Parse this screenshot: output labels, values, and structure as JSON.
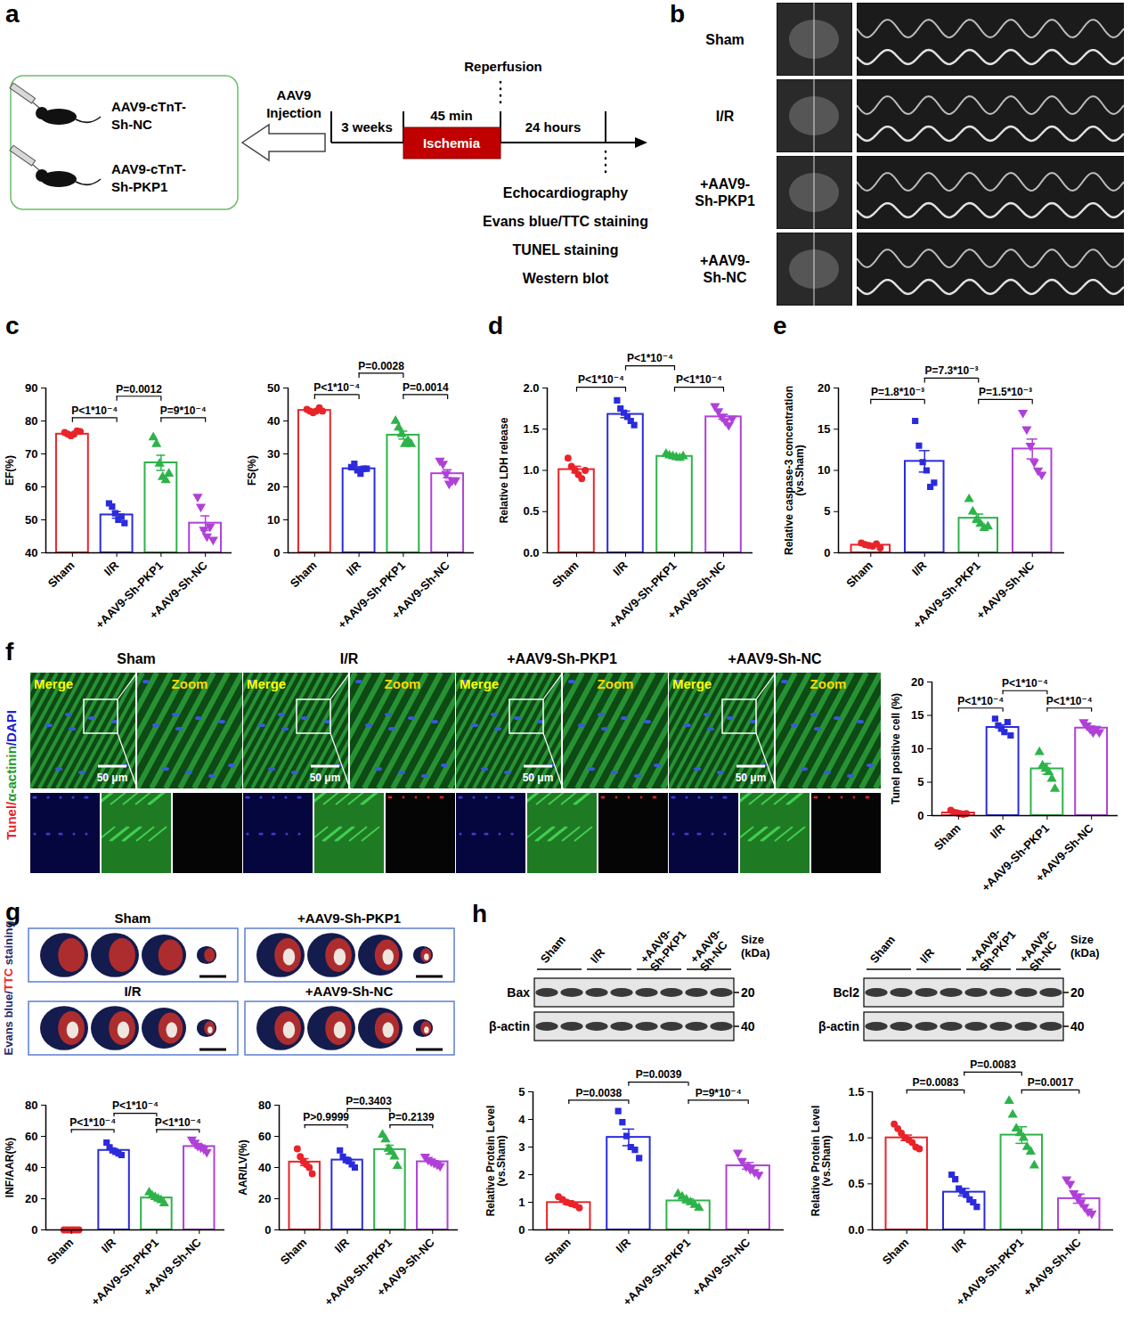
{
  "figure": {
    "letters": [
      "a",
      "b",
      "c",
      "d",
      "e",
      "f",
      "g",
      "h"
    ],
    "a": {
      "groups": [
        [
          "AAV9-cTnT-",
          "Sh-NC"
        ],
        [
          "AAV9-cTnT-",
          "Sh-PKP1"
        ]
      ],
      "injection": [
        "AAV9",
        "Injection"
      ],
      "reperfusion": "Reperfusion",
      "interval": "3 weeks",
      "ischemia_time": "45 min",
      "ischemia": "Ischemia",
      "reperfusion_time": "24 hours",
      "assays": [
        "Echocardiography",
        "Evans blue/TTC staining",
        "TUNEL staining",
        "Western blot"
      ]
    },
    "b": {
      "rows": [
        [
          "Sham"
        ],
        [
          "I/R"
        ],
        [
          "+AAV9-",
          "Sh-PKP1"
        ],
        [
          "+AAV9-",
          "Sh-NC"
        ]
      ]
    },
    "f": {
      "columns": [
        "Sham",
        "I/R",
        "+AAV9-Sh-PKP1",
        "+AAV9-Sh-NC"
      ],
      "merge": "Merge",
      "zoom": "Zoom",
      "scale_bar": "50 μm",
      "stain": [
        {
          "text": "Tunel/",
          "color": "#e8242a"
        },
        {
          "text": "α-actinin",
          "color": "#1a9a2a"
        },
        {
          "text": "/DAPI",
          "color": "#2020d0"
        }
      ]
    },
    "g": {
      "titles": [
        "Sham",
        "+AAV9-Sh-PKP1",
        "I/R",
        "+AAV9-Sh-NC"
      ],
      "stain": [
        {
          "text": "Evans blue/",
          "color": "#1f2a6b"
        },
        {
          "text": "TTC",
          "color": "#e8242a"
        },
        {
          "text": " staining",
          "color": "#1f2a6b"
        }
      ]
    },
    "h": {
      "lane_groups": [
        [
          "Sham"
        ],
        [
          "I/R"
        ],
        [
          "+AAV9-",
          "Sh-PKP1"
        ],
        [
          "+AAV9-",
          "Sh-NC"
        ]
      ],
      "size_label": [
        "Size",
        "(kDa)"
      ],
      "blots": [
        {
          "rows": [
            "Bax",
            "β-actin"
          ],
          "markers": [
            "20",
            "40"
          ]
        },
        {
          "rows": [
            "Bcl2",
            "β-actin"
          ],
          "markers": [
            "20",
            "40"
          ]
        }
      ]
    }
  },
  "chart_data": [
    {
      "type": "bar",
      "ylabel": "EF(%)",
      "categories": [
        "Sham",
        "I/R",
        "+AAV9-Sh-PKP1",
        "+AAV9-Sh-NC"
      ],
      "values": [
        76,
        51.5,
        67.3,
        49
      ],
      "errors": [
        0.4,
        1.0,
        2.3,
        2.2
      ],
      "points": [
        [
          76.5,
          76,
          75.5,
          76,
          77,
          76.8
        ],
        [
          55,
          54,
          52,
          50,
          51,
          49
        ],
        [
          75,
          73,
          67,
          63,
          62,
          64
        ],
        [
          57,
          54,
          47,
          45,
          48,
          44
        ]
      ],
      "colors": [
        "#e8242a",
        "#2b2bdc",
        "#2db34a",
        "#b040d8"
      ],
      "ylim": [
        40,
        90
      ],
      "yticks": [
        40,
        50,
        60,
        70,
        80,
        90
      ],
      "annotations": [
        {
          "between": [
            "Sham",
            "I/R"
          ],
          "text": "P<1*10⁻⁴"
        },
        {
          "between": [
            "+AAV9-Sh-PKP1",
            "+AAV9-Sh-NC"
          ],
          "text": "P=9*10⁻⁴"
        },
        {
          "between": [
            "I/R",
            "+AAV9-Sh-PKP1"
          ],
          "text": "P=0.0012"
        }
      ]
    },
    {
      "type": "bar",
      "ylabel": "FS(%)",
      "categories": [
        "Sham",
        "I/R",
        "+AAV9-Sh-PKP1",
        "+AAV9-Sh-NC"
      ],
      "values": [
        43.2,
        25.5,
        35.7,
        24
      ],
      "errors": [
        0.3,
        0.6,
        1.2,
        1.2
      ],
      "points": [
        [
          43.5,
          43,
          42.5,
          43,
          44,
          43
        ],
        [
          26,
          27,
          25,
          24,
          25.5,
          25.5
        ],
        [
          40,
          38,
          36,
          33,
          34,
          33
        ],
        [
          28,
          27,
          24,
          21,
          22,
          22
        ]
      ],
      "colors": [
        "#e8242a",
        "#2b2bdc",
        "#2db34a",
        "#b040d8"
      ],
      "ylim": [
        0,
        50
      ],
      "yticks": [
        0,
        10,
        20,
        30,
        40,
        50
      ],
      "annotations": [
        {
          "between": [
            "Sham",
            "I/R"
          ],
          "text": "P<1*10⁻⁴"
        },
        {
          "between": [
            "+AAV9-Sh-PKP1",
            "+AAV9-Sh-NC"
          ],
          "text": "P=0.0014"
        },
        {
          "between": [
            "I/R",
            "+AAV9-Sh-PKP1"
          ],
          "text": "P=0.0028"
        }
      ]
    },
    {
      "type": "bar",
      "ylabel": "Relative LDH release",
      "categories": [
        "Sham",
        "I/R",
        "+AAV9-Sh-PKP1",
        "+AAV9-Sh-NC"
      ],
      "values": [
        1.01,
        1.68,
        1.17,
        1.65
      ],
      "errors": [
        0.04,
        0.04,
        0.01,
        0.03
      ],
      "points": [
        [
          1.15,
          1.05,
          1.0,
          0.95,
          0.9,
          1.0
        ],
        [
          1.85,
          1.75,
          1.7,
          1.65,
          1.6,
          1.55
        ],
        [
          1.2,
          1.18,
          1.17,
          1.16,
          1.15,
          1.17
        ],
        [
          1.78,
          1.72,
          1.65,
          1.6,
          1.55,
          1.63
        ]
      ],
      "colors": [
        "#e8242a",
        "#2b2bdc",
        "#2db34a",
        "#b040d8"
      ],
      "ylim": [
        0,
        2
      ],
      "yticks": [
        {
          "value": 0,
          "label": "0.0"
        },
        {
          "value": 0.5,
          "label": "0.5"
        },
        {
          "value": 1,
          "label": "1.0"
        },
        {
          "value": 1.5,
          "label": "1.5"
        },
        {
          "value": 2,
          "label": "2.0"
        }
      ],
      "annotations": [
        {
          "between": [
            "Sham",
            "I/R"
          ],
          "text": "P<1*10⁻⁴"
        },
        {
          "between": [
            "+AAV9-Sh-PKP1",
            "+AAV9-Sh-NC"
          ],
          "text": "P<1*10⁻⁴"
        },
        {
          "between": [
            "I/R",
            "+AAV9-Sh-PKP1"
          ],
          "text": "P<1*10⁻⁴"
        }
      ]
    },
    {
      "type": "bar",
      "ylabel": "Relative caspase-3 concentration (vs.Sham)",
      "categories": [
        "Sham",
        "I/R",
        "+AAV9-Sh-PKP1",
        "+AAV9-Sh-NC"
      ],
      "values": [
        0.93,
        11.1,
        4.2,
        12.6
      ],
      "errors": [
        0.1,
        1.3,
        0.5,
        1.2
      ],
      "points": [
        [
          1.2,
          1.0,
          0.9,
          0.8,
          1.1,
          0.6
        ],
        [
          16,
          13,
          11,
          10,
          8,
          8.5
        ],
        [
          6.5,
          5,
          4,
          3.5,
          3,
          3.2
        ],
        [
          17,
          15,
          13,
          11,
          10,
          9.5
        ]
      ],
      "colors": [
        "#e8242a",
        "#2b2bdc",
        "#2db34a",
        "#b040d8"
      ],
      "ylim": [
        0,
        20
      ],
      "yticks": [
        0,
        5,
        10,
        15,
        20
      ],
      "annotations": [
        {
          "between": [
            "Sham",
            "I/R"
          ],
          "text": "P=1.8*10⁻³"
        },
        {
          "between": [
            "+AAV9-Sh-PKP1",
            "+AAV9-Sh-NC"
          ],
          "text": "P=1.5*10⁻³"
        },
        {
          "between": [
            "I/R",
            "+AAV9-Sh-PKP1"
          ],
          "text": "P=7.3*10⁻³"
        }
      ]
    },
    {
      "type": "bar",
      "ylabel": "Tunel positive cell (%)",
      "categories": [
        "Sham",
        "I/R",
        "+AAV9-Sh-PKP1",
        "+AAV9-Sh-NC"
      ],
      "values": [
        0.4,
        13.2,
        7.0,
        13.1
      ],
      "errors": [
        0.1,
        0.4,
        0.8,
        0.3
      ],
      "points": [
        [
          0.8,
          0.5,
          0.4,
          0.3,
          0.2,
          0.3
        ],
        [
          14.5,
          13.5,
          13,
          12.5,
          14,
          12
        ],
        [
          9.5,
          7.5,
          7,
          6.5,
          5.5,
          4
        ],
        [
          14,
          13.5,
          13,
          12.5,
          13,
          12.5
        ]
      ],
      "colors": [
        "#e8242a",
        "#2b2bdc",
        "#2db34a",
        "#b040d8"
      ],
      "ylim": [
        0,
        20
      ],
      "yticks": [
        0,
        5,
        10,
        15,
        20
      ],
      "annotations": [
        {
          "between": [
            "Sham",
            "I/R"
          ],
          "text": "P<1*10⁻⁴"
        },
        {
          "between": [
            "+AAV9-Sh-PKP1",
            "+AAV9-Sh-NC"
          ],
          "text": "P<1*10⁻⁴"
        },
        {
          "between": [
            "I/R",
            "+AAV9-Sh-PKP1"
          ],
          "text": "P<1*10⁻⁴"
        }
      ]
    },
    {
      "type": "bar",
      "ylabel": "INF/AAR(%)",
      "categories": [
        "Sham",
        "I/R",
        "+AAV9-Sh-PKP1",
        "+AAV9-Sh-NC"
      ],
      "values": [
        0,
        51,
        20.5,
        53.5
      ],
      "errors": [
        0,
        1.2,
        1.0,
        1.2
      ],
      "points": [
        [
          0,
          0,
          0,
          0,
          0,
          0
        ],
        [
          56,
          53,
          51,
          50,
          49,
          48
        ],
        [
          24,
          22,
          21,
          20,
          19,
          17
        ],
        [
          58,
          56,
          54,
          53,
          52,
          50
        ]
      ],
      "colors": [
        "#e8242a",
        "#2b2bdc",
        "#2db34a",
        "#b040d8"
      ],
      "ylim": [
        0,
        80
      ],
      "yticks": [
        0,
        20,
        40,
        60,
        80
      ],
      "annotations": [
        {
          "between": [
            "Sham",
            "I/R"
          ],
          "text": "P<1*10⁻⁴"
        },
        {
          "between": [
            "+AAV9-Sh-PKP1",
            "+AAV9-Sh-NC"
          ],
          "text": "P<1*10⁻⁴"
        },
        {
          "between": [
            "I/R",
            "+AAV9-Sh-PKP1"
          ],
          "text": "P<1*10⁻⁴"
        }
      ]
    },
    {
      "type": "bar",
      "ylabel": "AAR/LV(%)",
      "categories": [
        "Sham",
        "I/R",
        "+AAV9-Sh-PKP1",
        "+AAV9-Sh-NC"
      ],
      "values": [
        43.5,
        44.8,
        51.5,
        43.7
      ],
      "errors": [
        2.2,
        1.6,
        2.8,
        0.9
      ],
      "points": [
        [
          52,
          47,
          44,
          42,
          40,
          36
        ],
        [
          51,
          47,
          45,
          44,
          42,
          40
        ],
        [
          61,
          58,
          52,
          50,
          47,
          41
        ],
        [
          47,
          45,
          44,
          43,
          42,
          41
        ]
      ],
      "colors": [
        "#e8242a",
        "#2b2bdc",
        "#2db34a",
        "#b040d8"
      ],
      "ylim": [
        0,
        80
      ],
      "yticks": [
        0,
        20,
        40,
        60,
        80
      ],
      "annotations": [
        {
          "between": [
            "Sham",
            "I/R"
          ],
          "text": "P>0.9999"
        },
        {
          "between": [
            "+AAV9-Sh-PKP1",
            "+AAV9-Sh-NC"
          ],
          "text": "P=0.2139"
        },
        {
          "between": [
            "I/R",
            "+AAV9-Sh-PKP1"
          ],
          "text": "P=0.3403"
        }
      ]
    },
    {
      "type": "bar",
      "ylabel": "Relative Protein Level (vs.Sham)",
      "categories": [
        "Sham",
        "I/R",
        "+AAV9-Sh-PKP1",
        "+AAV9-Sh-NC"
      ],
      "values": [
        0.99,
        3.35,
        1.05,
        2.32
      ],
      "errors": [
        0.06,
        0.3,
        0.07,
        0.12
      ],
      "points": [
        [
          1.2,
          1.1,
          1.0,
          0.95,
          0.9,
          0.8
        ],
        [
          4.3,
          3.9,
          3.4,
          3.0,
          2.9,
          2.6
        ],
        [
          1.3,
          1.2,
          1.1,
          1.0,
          0.9,
          0.8
        ],
        [
          2.8,
          2.5,
          2.3,
          2.2,
          2.1,
          2.0
        ]
      ],
      "colors": [
        "#e8242a",
        "#2b2bdc",
        "#2db34a",
        "#b040d8"
      ],
      "ylim": [
        0,
        5
      ],
      "yticks": [
        0,
        1,
        2,
        3,
        4,
        5
      ],
      "annotations": [
        {
          "between": [
            "Sham",
            "I/R"
          ],
          "text": "P=0.0038"
        },
        {
          "between": [
            "+AAV9-Sh-PKP1",
            "+AAV9-Sh-NC"
          ],
          "text": "P=9*10⁻⁴"
        },
        {
          "between": [
            "I/R",
            "+AAV9-Sh-PKP1"
          ],
          "text": "P=0.0039"
        }
      ]
    },
    {
      "type": "bar",
      "ylabel": "Relative Protein Level (vs.Sham)",
      "categories": [
        "Sham",
        "I/R",
        "+AAV9-Sh-PKP1",
        "+AAV9-Sh-NC"
      ],
      "values": [
        1.0,
        0.41,
        1.03,
        0.34
      ],
      "errors": [
        0.03,
        0.04,
        0.09,
        0.05
      ],
      "points": [
        [
          1.15,
          1.1,
          1.05,
          1.0,
          0.98,
          0.95,
          0.9,
          0.88
        ],
        [
          0.6,
          0.55,
          0.45,
          0.42,
          0.38,
          0.33,
          0.3,
          0.25
        ],
        [
          1.4,
          1.25,
          1.1,
          1.05,
          1.0,
          0.9,
          0.85,
          0.7
        ],
        [
          0.55,
          0.5,
          0.4,
          0.35,
          0.3,
          0.25,
          0.2,
          0.18
        ]
      ],
      "colors": [
        "#e8242a",
        "#2b2bdc",
        "#2db34a",
        "#b040d8"
      ],
      "ylim": [
        0,
        1.5
      ],
      "yticks": [
        {
          "value": 0,
          "label": "0.0"
        },
        {
          "value": 0.5,
          "label": "0.5"
        },
        {
          "value": 1,
          "label": "1.0"
        },
        {
          "value": 1.5,
          "label": "1.5"
        }
      ],
      "annotations": [
        {
          "between": [
            "Sham",
            "I/R"
          ],
          "text": "P=0.0083"
        },
        {
          "between": [
            "+AAV9-Sh-PKP1",
            "+AAV9-Sh-NC"
          ],
          "text": "P=0.0017"
        },
        {
          "between": [
            "I/R",
            "+AAV9-Sh-PKP1"
          ],
          "text": "P=0.0083"
        }
      ]
    }
  ]
}
